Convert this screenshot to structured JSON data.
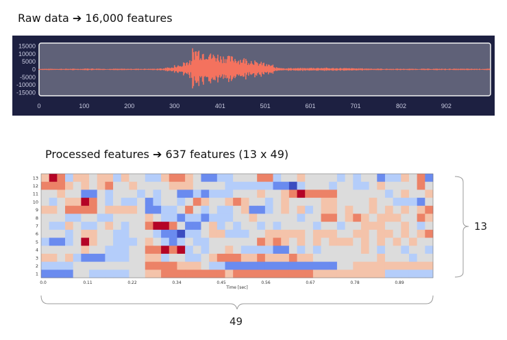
{
  "titles": {
    "raw": "Raw data ➔ 16,000 features",
    "processed": "Processed features ➔ 637 features (13 x 49)"
  },
  "brackets": {
    "rows": "13",
    "cols": "49"
  },
  "chart_data": [
    {
      "type": "line",
      "title": "Raw data waveform",
      "x_ticks": [
        "0",
        "100",
        "200",
        "300",
        "401",
        "501",
        "601",
        "701",
        "802",
        "902"
      ],
      "y_ticks": [
        "15000",
        "10000",
        "5000",
        "0",
        "-5000",
        "-10000",
        "-15000"
      ],
      "xlim": [
        0,
        1000
      ],
      "ylim": [
        -17000,
        17000
      ],
      "envelope_bin_size": 20,
      "envelope_amplitude": [
        500,
        500,
        500,
        500,
        500,
        700,
        600,
        500,
        500,
        500,
        500,
        500,
        500,
        700,
        1500,
        3000,
        6000,
        15000,
        14000,
        11000,
        10000,
        9000,
        8000,
        7000,
        5000,
        3500,
        1500,
        1000,
        1000,
        1000,
        1200,
        1200,
        1000,
        1000,
        900,
        800,
        700,
        600,
        500,
        500,
        500,
        500,
        500,
        500,
        500,
        500,
        500,
        500,
        500,
        500
      ],
      "line_color": "#f4725e",
      "background": "#5f6178",
      "panel_color": "#1d2041"
    },
    {
      "type": "heatmap",
      "title": "Processed features",
      "xlabel": "Time [sec]",
      "x_ticks": [
        "0.0",
        "0.11",
        "0.22",
        "0.34",
        "0.45",
        "0.56",
        "0.67",
        "0.78",
        "0.89"
      ],
      "y_ticks": [
        "13",
        "12",
        "11",
        "10",
        "9",
        "8",
        "7",
        "6",
        "5",
        "4",
        "3",
        "2",
        "1"
      ],
      "value_range": [
        -3,
        3
      ],
      "colormap": [
        "#3b4cc0",
        "#6a8bef",
        "#b4cdfa",
        "#dcdcdc",
        "#f4c3aa",
        "#ec8267",
        "#b40426"
      ],
      "rows": [
        [
          1,
          3,
          2,
          -1,
          1,
          1,
          0,
          1,
          1,
          -1,
          1,
          0,
          0,
          -1,
          -1,
          1,
          2,
          2,
          1,
          0,
          -2,
          -2,
          -1,
          -1,
          0,
          0,
          0,
          2,
          2,
          -1,
          0,
          0,
          1,
          0,
          0,
          0,
          0,
          -1,
          0,
          -1,
          0,
          0,
          -2,
          -1,
          -1,
          1,
          0,
          2,
          -2
        ],
        [
          2,
          2,
          2,
          1,
          0,
          1,
          0,
          1,
          2,
          0,
          0,
          1,
          0,
          0,
          0,
          0,
          1,
          1,
          1,
          0,
          0,
          0,
          0,
          -1,
          -1,
          -1,
          -1,
          -1,
          -1,
          -2,
          -2,
          -3,
          -1,
          0,
          0,
          0,
          -1,
          0,
          0,
          -1,
          -1,
          0,
          1,
          0,
          0,
          0,
          0,
          2,
          0
        ],
        [
          0,
          0,
          1,
          0,
          0,
          -2,
          -2,
          0,
          -1,
          0,
          0,
          0,
          -1,
          0,
          -1,
          0,
          0,
          -2,
          -2,
          -1,
          -2,
          -1,
          -1,
          -1,
          0,
          0,
          0,
          1,
          0,
          0,
          1,
          2,
          3,
          2,
          2,
          2,
          2,
          0,
          0,
          0,
          0,
          0,
          0,
          -1,
          0,
          1,
          0,
          0,
          1
        ],
        [
          0,
          -1,
          0,
          1,
          1,
          3,
          2,
          0,
          -1,
          0,
          -1,
          -1,
          0,
          -2,
          -1,
          0,
          0,
          -1,
          0,
          2,
          1,
          0,
          0,
          1,
          2,
          1,
          0,
          0,
          -1,
          0,
          1,
          0,
          0,
          0,
          0,
          1,
          1,
          0,
          0,
          0,
          0,
          1,
          0,
          0,
          -1,
          -1,
          -1,
          -2,
          0
        ],
        [
          1,
          1,
          0,
          2,
          2,
          2,
          2,
          0,
          1,
          1,
          1,
          1,
          0,
          -2,
          -2,
          -1,
          -1,
          0,
          2,
          0,
          -1,
          0,
          -1,
          -1,
          0,
          1,
          -2,
          -2,
          -1,
          0,
          1,
          0,
          1,
          -1,
          0,
          1,
          1,
          0,
          1,
          0,
          0,
          1,
          0,
          1,
          0,
          1,
          0,
          1,
          2
        ],
        [
          0,
          0,
          0,
          -1,
          -1,
          0,
          0,
          -1,
          -1,
          0,
          0,
          0,
          0,
          1,
          0,
          -1,
          -1,
          -2,
          -1,
          -1,
          -2,
          -1,
          -1,
          -1,
          0,
          0,
          1,
          0,
          0,
          0,
          0,
          0,
          -1,
          0,
          0,
          2,
          2,
          0,
          1,
          2,
          1,
          0,
          1,
          1,
          1,
          0,
          0,
          2,
          1
        ],
        [
          0,
          -1,
          -1,
          1,
          0,
          -1,
          -1,
          0,
          1,
          0,
          -1,
          0,
          0,
          2,
          3,
          3,
          2,
          0,
          -2,
          -2,
          0,
          1,
          -1,
          0,
          -1,
          0,
          0,
          -1,
          0,
          -1,
          0,
          0,
          0,
          0,
          -1,
          0,
          0,
          -1,
          0,
          0,
          1,
          1,
          1,
          0,
          0,
          1,
          0,
          -1,
          0
        ],
        [
          0,
          0,
          0,
          -1,
          0,
          1,
          1,
          0,
          0,
          -1,
          -1,
          0,
          0,
          0,
          -1,
          -2,
          -2,
          -3,
          -1,
          -1,
          0,
          1,
          1,
          -1,
          -1,
          -1,
          0,
          0,
          1,
          1,
          1,
          1,
          1,
          0,
          1,
          1,
          1,
          0,
          0,
          1,
          1,
          0,
          1,
          1,
          0,
          1,
          0,
          1,
          2
        ],
        [
          -1,
          -2,
          -2,
          -1,
          0,
          3,
          1,
          0,
          0,
          -1,
          -1,
          -1,
          0,
          1,
          0,
          -1,
          -2,
          -1,
          0,
          -1,
          -1,
          0,
          0,
          0,
          0,
          0,
          0,
          2,
          1,
          2,
          1,
          0,
          1,
          0,
          1,
          0,
          1,
          1,
          1,
          0,
          1,
          0,
          1,
          0,
          1,
          0,
          1,
          0,
          0
        ],
        [
          0,
          0,
          0,
          0,
          0,
          1,
          0,
          0,
          -1,
          -1,
          -1,
          0,
          0,
          2,
          2,
          3,
          2,
          3,
          -1,
          0,
          -1,
          0,
          0,
          1,
          0,
          -1,
          -1,
          -1,
          -1,
          -2,
          -2,
          0,
          -1,
          0,
          -1,
          0,
          0,
          0,
          0,
          0,
          1,
          0,
          -1,
          0,
          0,
          -1,
          0,
          0,
          -1
        ],
        [
          1,
          1,
          0,
          1,
          -1,
          -2,
          -2,
          -2,
          -1,
          -1,
          -1,
          0,
          0,
          1,
          1,
          -1,
          0,
          0,
          -1,
          -1,
          0,
          1,
          2,
          2,
          2,
          1,
          1,
          2,
          1,
          1,
          1,
          2,
          1,
          1,
          0,
          0,
          0,
          0,
          0,
          0,
          0,
          0,
          1,
          0,
          0,
          0,
          -1,
          0,
          0
        ],
        [
          -1,
          -1,
          -1,
          -1,
          0,
          0,
          0,
          0,
          0,
          0,
          0,
          0,
          0,
          2,
          2,
          2,
          2,
          1,
          1,
          1,
          0,
          -1,
          -1,
          -2,
          -2,
          -2,
          -2,
          -2,
          -2,
          -2,
          -2,
          -2,
          -2,
          -2,
          -2,
          -2,
          -2,
          0,
          0,
          1,
          1,
          1,
          1,
          1,
          1,
          1,
          1,
          1,
          1
        ],
        [
          -2,
          -2,
          -2,
          -2,
          0,
          0,
          -1,
          -1,
          -1,
          -1,
          -1,
          0,
          0,
          1,
          1,
          2,
          2,
          2,
          2,
          2,
          2,
          2,
          2,
          1,
          2,
          2,
          2,
          2,
          2,
          2,
          2,
          2,
          2,
          2,
          1,
          1,
          1,
          1,
          1,
          1,
          1,
          1,
          1,
          -1,
          -1,
          -1,
          -1,
          -1,
          -1
        ]
      ]
    }
  ]
}
